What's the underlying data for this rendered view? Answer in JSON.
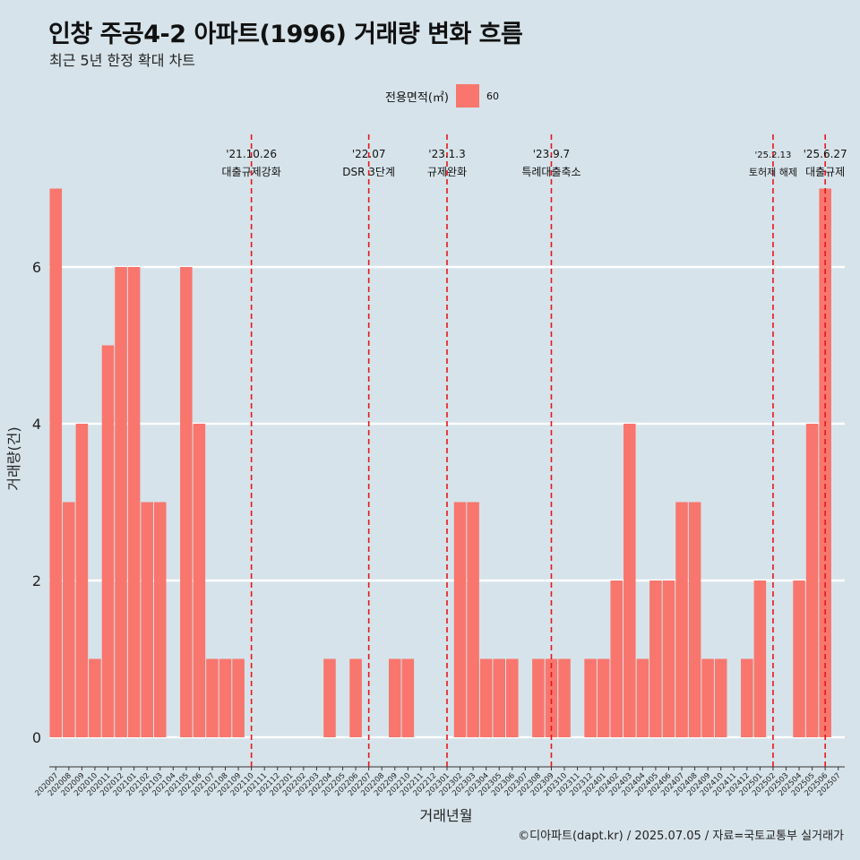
{
  "header": {
    "title": "인창 주공4-2 아파트(1996) 거래량 변화 흐름",
    "subtitle": "최근 5년 한정 확대 차트"
  },
  "legend": {
    "title": "전용면적(㎡)",
    "item": "60"
  },
  "caption": "©디아파트(dapt.kr) / 2025.07.05 / 자료=국토교통부 실거래가",
  "colors": {
    "background": "#d6e3ea",
    "bar": "#f8766d",
    "event_line": "#e8161b",
    "grid": "#ffffff"
  },
  "chart_data": {
    "type": "bar",
    "xlabel": "거래년월",
    "ylabel": "거래량(건)",
    "ylim": [
      0,
      7
    ],
    "yticks": [
      0,
      2,
      4,
      6
    ],
    "grid": true,
    "legend_position": "top",
    "categories": [
      "202007",
      "202008",
      "202009",
      "202010",
      "202011",
      "202012",
      "202101",
      "202102",
      "202103",
      "202104",
      "202105",
      "202106",
      "202107",
      "202108",
      "202109",
      "202110",
      "202111",
      "202112",
      "202201",
      "202202",
      "202203",
      "202204",
      "202205",
      "202206",
      "202207",
      "202208",
      "202209",
      "202210",
      "202211",
      "202212",
      "202301",
      "202302",
      "202303",
      "202304",
      "202305",
      "202306",
      "202307",
      "202308",
      "202309",
      "202310",
      "202311",
      "202312",
      "202401",
      "202402",
      "202403",
      "202404",
      "202405",
      "202406",
      "202407",
      "202408",
      "202409",
      "202410",
      "202411",
      "202412",
      "202501",
      "202502",
      "202503",
      "202504",
      "202505",
      "202506",
      "202507"
    ],
    "series": [
      {
        "name": "60",
        "values": [
          7,
          3,
          4,
          1,
          5,
          6,
          6,
          3,
          3,
          0,
          6,
          4,
          1,
          1,
          1,
          0,
          0,
          0,
          0,
          0,
          0,
          1,
          0,
          1,
          0,
          0,
          1,
          1,
          0,
          0,
          0,
          3,
          3,
          1,
          1,
          1,
          0,
          1,
          1,
          1,
          0,
          1,
          1,
          2,
          4,
          1,
          2,
          2,
          3,
          3,
          1,
          1,
          0,
          1,
          2,
          0,
          0,
          2,
          4,
          7,
          0
        ]
      }
    ],
    "events": [
      {
        "date": "'21.10.26",
        "label": "대출규제강화",
        "position": 15.5
      },
      {
        "date": "'22.07",
        "label": "DSR 3단계",
        "position": 24.5
      },
      {
        "date": "'23.1.3",
        "label": "규제완화",
        "position": 30.5
      },
      {
        "date": "'23.9.7",
        "label": "특례대출축소",
        "position": 38.5
      },
      {
        "date": "'25.2.13",
        "label": "토허제 해제",
        "position": 55.5
      },
      {
        "date": "'25.6.27",
        "label": "대출규제",
        "position": 59.5
      }
    ]
  }
}
